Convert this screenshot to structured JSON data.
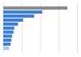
{
  "chart_data": {
    "type": "bar",
    "orientation": "horizontal",
    "categories": [
      null,
      null,
      null,
      null,
      null,
      null,
      null,
      null,
      null,
      null,
      null
    ],
    "values": [
      87,
      53,
      42,
      27,
      20,
      15,
      14,
      12,
      11,
      10,
      8
    ],
    "colors": [
      "#8c8c8c",
      "#3d7fdc",
      "#3d7fdc",
      "#3d7fdc",
      "#3d7fdc",
      "#3d7fdc",
      "#3d7fdc",
      "#3d7fdc",
      "#3d7fdc",
      "#3d7fdc",
      "#a9c6ee"
    ],
    "xlim": [
      0,
      100
    ],
    "xticks": [
      0,
      25,
      50,
      75,
      100
    ],
    "grid": true,
    "tick_labels": false
  }
}
